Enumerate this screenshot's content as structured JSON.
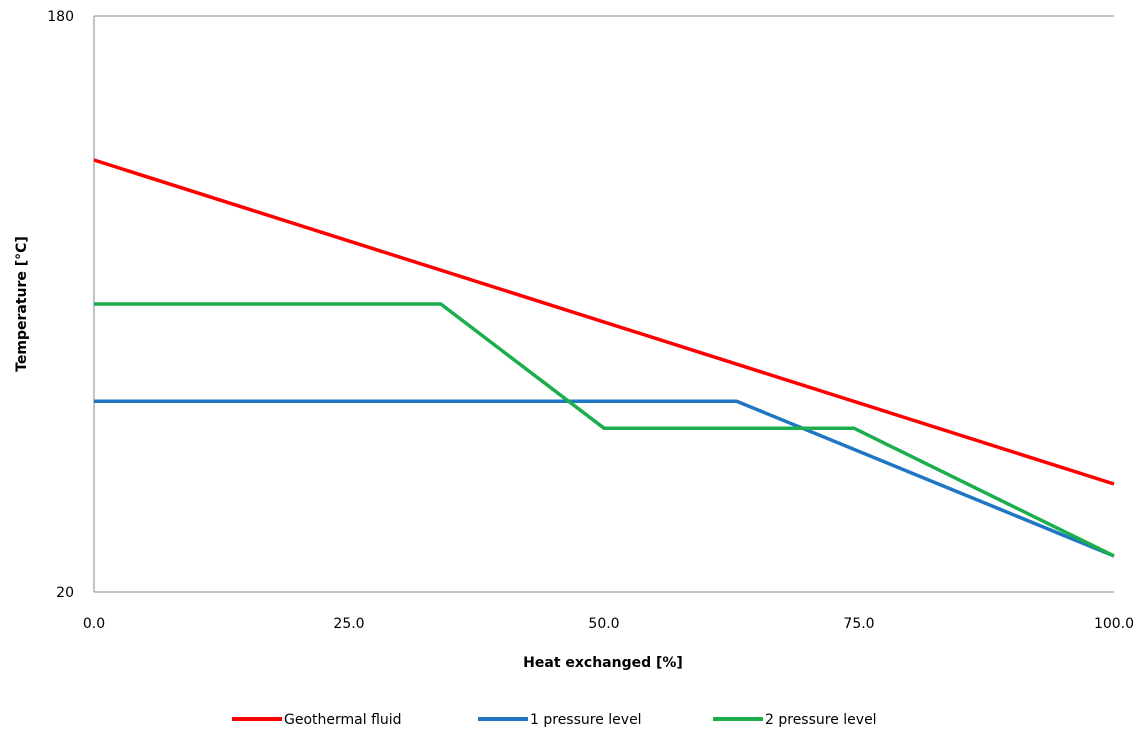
{
  "chart_data": {
    "type": "line",
    "title": "",
    "xlabel": "Heat exchanged  [%]",
    "ylabel": "Temperature [°C]",
    "xlim": [
      0,
      100
    ],
    "ylim": [
      20,
      180
    ],
    "x_ticks": [
      0,
      25,
      50,
      75,
      100
    ],
    "x_tick_labels": [
      "0.0",
      "25.0",
      "50.0",
      "75.0",
      "100.0"
    ],
    "y_ticks": [
      20,
      180
    ],
    "y_tick_labels": [
      "20",
      "180"
    ],
    "grid": "horizontal gridline at top only",
    "legend_position": "bottom",
    "series": [
      {
        "name": "Geothermal fluid",
        "color": "#ff0000",
        "points": [
          [
            0,
            140
          ],
          [
            100,
            50
          ]
        ]
      },
      {
        "name": "1 pressure level",
        "color": "#1f77c4",
        "points": [
          [
            0,
            73
          ],
          [
            63,
            73
          ],
          [
            100,
            30
          ]
        ]
      },
      {
        "name": "2 pressure level",
        "color": "#1aae4c",
        "points": [
          [
            0,
            100
          ],
          [
            34,
            100
          ],
          [
            50,
            65.5
          ],
          [
            74.5,
            65.5
          ],
          [
            100,
            30
          ]
        ]
      }
    ]
  }
}
